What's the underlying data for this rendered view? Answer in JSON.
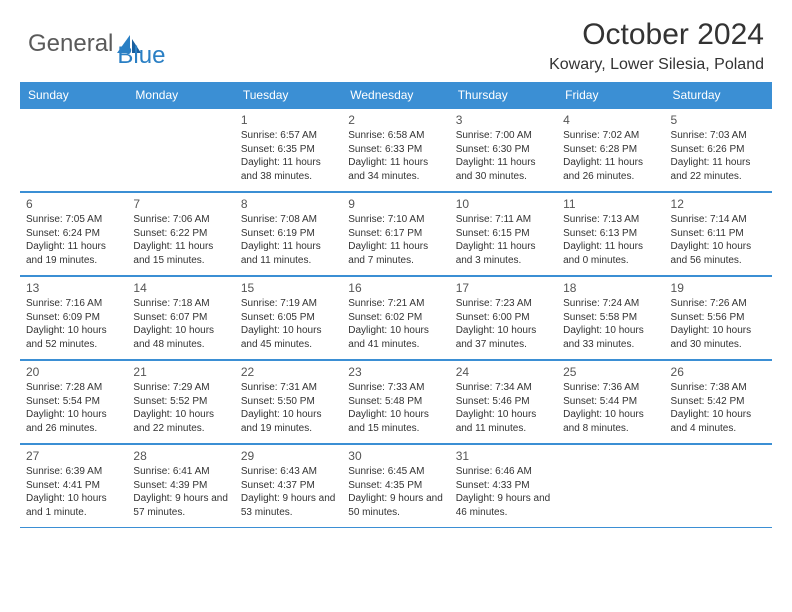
{
  "logo": {
    "text_general": "General",
    "text_blue": "Blue",
    "icon_color": "#2a7fc4"
  },
  "title": "October 2024",
  "location": "Kowary, Lower Silesia, Poland",
  "colors": {
    "header_bg": "#3b8fd4",
    "header_text": "#ffffff",
    "border": "#3b8fd4",
    "day_num": "#555555",
    "body_text": "#333333",
    "logo_gray": "#5a5a5a",
    "logo_blue": "#2a7fc4",
    "background": "#ffffff"
  },
  "typography": {
    "title_fontsize": 30,
    "location_fontsize": 16,
    "weekday_fontsize": 12,
    "daynum_fontsize": 12,
    "info_fontsize": 10,
    "logo_fontsize": 24
  },
  "weekdays": [
    "Sunday",
    "Monday",
    "Tuesday",
    "Wednesday",
    "Thursday",
    "Friday",
    "Saturday"
  ],
  "weeks": [
    [
      {
        "empty": true
      },
      {
        "empty": true
      },
      {
        "num": "1",
        "sunrise": "Sunrise: 6:57 AM",
        "sunset": "Sunset: 6:35 PM",
        "daylight": "Daylight: 11 hours and 38 minutes."
      },
      {
        "num": "2",
        "sunrise": "Sunrise: 6:58 AM",
        "sunset": "Sunset: 6:33 PM",
        "daylight": "Daylight: 11 hours and 34 minutes."
      },
      {
        "num": "3",
        "sunrise": "Sunrise: 7:00 AM",
        "sunset": "Sunset: 6:30 PM",
        "daylight": "Daylight: 11 hours and 30 minutes."
      },
      {
        "num": "4",
        "sunrise": "Sunrise: 7:02 AM",
        "sunset": "Sunset: 6:28 PM",
        "daylight": "Daylight: 11 hours and 26 minutes."
      },
      {
        "num": "5",
        "sunrise": "Sunrise: 7:03 AM",
        "sunset": "Sunset: 6:26 PM",
        "daylight": "Daylight: 11 hours and 22 minutes."
      }
    ],
    [
      {
        "num": "6",
        "sunrise": "Sunrise: 7:05 AM",
        "sunset": "Sunset: 6:24 PM",
        "daylight": "Daylight: 11 hours and 19 minutes."
      },
      {
        "num": "7",
        "sunrise": "Sunrise: 7:06 AM",
        "sunset": "Sunset: 6:22 PM",
        "daylight": "Daylight: 11 hours and 15 minutes."
      },
      {
        "num": "8",
        "sunrise": "Sunrise: 7:08 AM",
        "sunset": "Sunset: 6:19 PM",
        "daylight": "Daylight: 11 hours and 11 minutes."
      },
      {
        "num": "9",
        "sunrise": "Sunrise: 7:10 AM",
        "sunset": "Sunset: 6:17 PM",
        "daylight": "Daylight: 11 hours and 7 minutes."
      },
      {
        "num": "10",
        "sunrise": "Sunrise: 7:11 AM",
        "sunset": "Sunset: 6:15 PM",
        "daylight": "Daylight: 11 hours and 3 minutes."
      },
      {
        "num": "11",
        "sunrise": "Sunrise: 7:13 AM",
        "sunset": "Sunset: 6:13 PM",
        "daylight": "Daylight: 11 hours and 0 minutes."
      },
      {
        "num": "12",
        "sunrise": "Sunrise: 7:14 AM",
        "sunset": "Sunset: 6:11 PM",
        "daylight": "Daylight: 10 hours and 56 minutes."
      }
    ],
    [
      {
        "num": "13",
        "sunrise": "Sunrise: 7:16 AM",
        "sunset": "Sunset: 6:09 PM",
        "daylight": "Daylight: 10 hours and 52 minutes."
      },
      {
        "num": "14",
        "sunrise": "Sunrise: 7:18 AM",
        "sunset": "Sunset: 6:07 PM",
        "daylight": "Daylight: 10 hours and 48 minutes."
      },
      {
        "num": "15",
        "sunrise": "Sunrise: 7:19 AM",
        "sunset": "Sunset: 6:05 PM",
        "daylight": "Daylight: 10 hours and 45 minutes."
      },
      {
        "num": "16",
        "sunrise": "Sunrise: 7:21 AM",
        "sunset": "Sunset: 6:02 PM",
        "daylight": "Daylight: 10 hours and 41 minutes."
      },
      {
        "num": "17",
        "sunrise": "Sunrise: 7:23 AM",
        "sunset": "Sunset: 6:00 PM",
        "daylight": "Daylight: 10 hours and 37 minutes."
      },
      {
        "num": "18",
        "sunrise": "Sunrise: 7:24 AM",
        "sunset": "Sunset: 5:58 PM",
        "daylight": "Daylight: 10 hours and 33 minutes."
      },
      {
        "num": "19",
        "sunrise": "Sunrise: 7:26 AM",
        "sunset": "Sunset: 5:56 PM",
        "daylight": "Daylight: 10 hours and 30 minutes."
      }
    ],
    [
      {
        "num": "20",
        "sunrise": "Sunrise: 7:28 AM",
        "sunset": "Sunset: 5:54 PM",
        "daylight": "Daylight: 10 hours and 26 minutes."
      },
      {
        "num": "21",
        "sunrise": "Sunrise: 7:29 AM",
        "sunset": "Sunset: 5:52 PM",
        "daylight": "Daylight: 10 hours and 22 minutes."
      },
      {
        "num": "22",
        "sunrise": "Sunrise: 7:31 AM",
        "sunset": "Sunset: 5:50 PM",
        "daylight": "Daylight: 10 hours and 19 minutes."
      },
      {
        "num": "23",
        "sunrise": "Sunrise: 7:33 AM",
        "sunset": "Sunset: 5:48 PM",
        "daylight": "Daylight: 10 hours and 15 minutes."
      },
      {
        "num": "24",
        "sunrise": "Sunrise: 7:34 AM",
        "sunset": "Sunset: 5:46 PM",
        "daylight": "Daylight: 10 hours and 11 minutes."
      },
      {
        "num": "25",
        "sunrise": "Sunrise: 7:36 AM",
        "sunset": "Sunset: 5:44 PM",
        "daylight": "Daylight: 10 hours and 8 minutes."
      },
      {
        "num": "26",
        "sunrise": "Sunrise: 7:38 AM",
        "sunset": "Sunset: 5:42 PM",
        "daylight": "Daylight: 10 hours and 4 minutes."
      }
    ],
    [
      {
        "num": "27",
        "sunrise": "Sunrise: 6:39 AM",
        "sunset": "Sunset: 4:41 PM",
        "daylight": "Daylight: 10 hours and 1 minute."
      },
      {
        "num": "28",
        "sunrise": "Sunrise: 6:41 AM",
        "sunset": "Sunset: 4:39 PM",
        "daylight": "Daylight: 9 hours and 57 minutes."
      },
      {
        "num": "29",
        "sunrise": "Sunrise: 6:43 AM",
        "sunset": "Sunset: 4:37 PM",
        "daylight": "Daylight: 9 hours and 53 minutes."
      },
      {
        "num": "30",
        "sunrise": "Sunrise: 6:45 AM",
        "sunset": "Sunset: 4:35 PM",
        "daylight": "Daylight: 9 hours and 50 minutes."
      },
      {
        "num": "31",
        "sunrise": "Sunrise: 6:46 AM",
        "sunset": "Sunset: 4:33 PM",
        "daylight": "Daylight: 9 hours and 46 minutes."
      },
      {
        "empty": true
      },
      {
        "empty": true
      }
    ]
  ]
}
